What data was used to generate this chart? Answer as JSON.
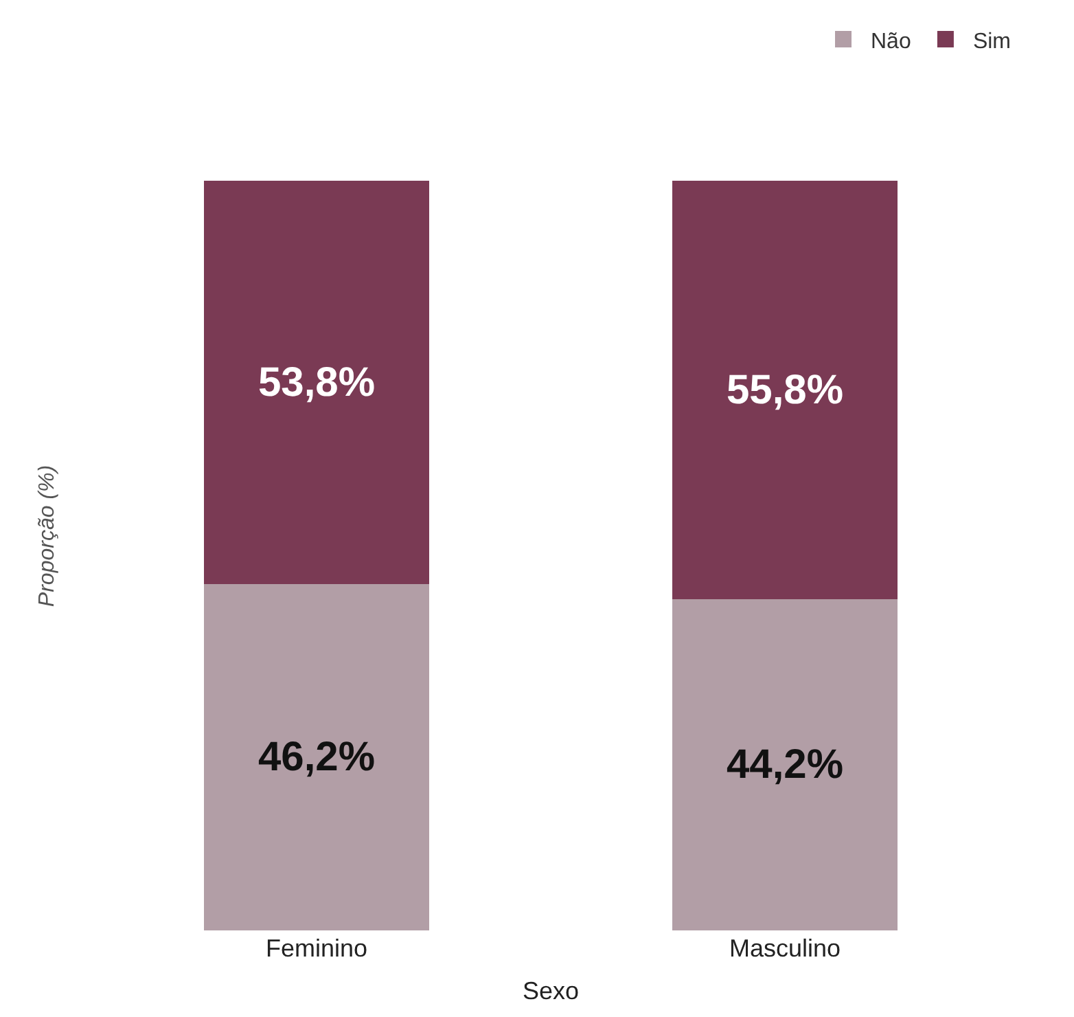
{
  "chart_data": {
    "type": "bar",
    "stacked": true,
    "xlabel": "Sexo",
    "ylabel": "Proporção (%)",
    "categories": [
      "Feminino",
      "Masculino"
    ],
    "series": [
      {
        "name": "Não",
        "color": "#b29ea6",
        "values": [
          46.2,
          44.2
        ],
        "value_labels": [
          "46,2%",
          "44,2%"
        ]
      },
      {
        "name": "Sim",
        "color": "#7a3a54",
        "values": [
          53.8,
          55.8
        ],
        "value_labels": [
          "53,8%",
          "55,8%"
        ]
      }
    ],
    "legend": "top right"
  }
}
